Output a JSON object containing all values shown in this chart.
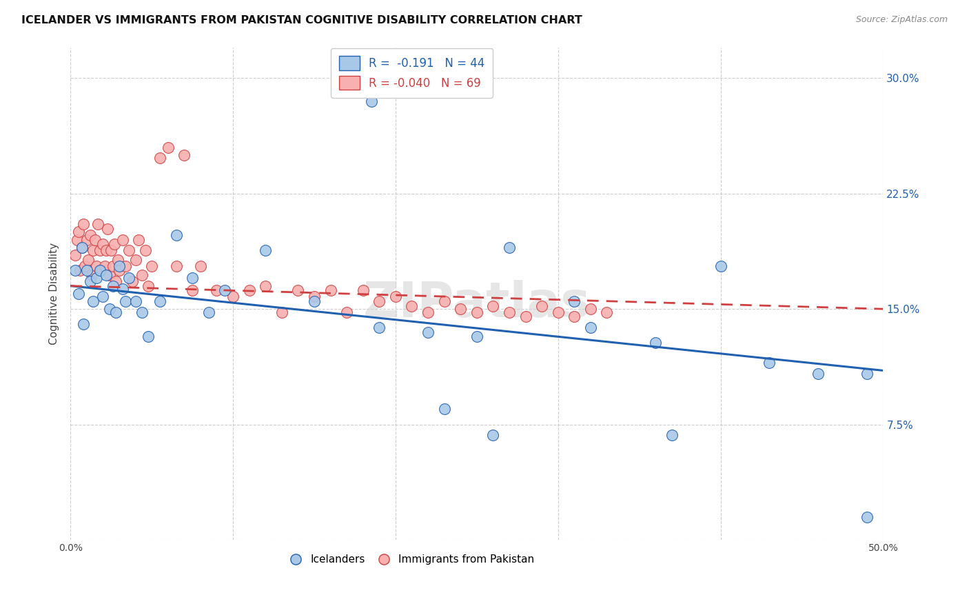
{
  "title": "ICELANDER VS IMMIGRANTS FROM PAKISTAN COGNITIVE DISABILITY CORRELATION CHART",
  "source": "Source: ZipAtlas.com",
  "ylabel": "Cognitive Disability",
  "xlim": [
    0.0,
    0.5
  ],
  "ylim": [
    0.0,
    0.32
  ],
  "yticks": [
    0.0,
    0.075,
    0.15,
    0.225,
    0.3
  ],
  "ytick_labels": [
    "",
    "7.5%",
    "15.0%",
    "22.5%",
    "30.0%"
  ],
  "xticks": [
    0.0,
    0.1,
    0.2,
    0.3,
    0.4,
    0.5
  ],
  "xtick_labels": [
    "0.0%",
    "",
    "",
    "",
    "",
    "50.0%"
  ],
  "background_color": "#ffffff",
  "grid_color": "#c8c8c8",
  "watermark": "ZIPatlas",
  "legend_R_blue": "-0.191",
  "legend_N_blue": "44",
  "legend_R_pink": "-0.040",
  "legend_N_pink": "69",
  "blue_color": "#a8c8e8",
  "pink_color": "#f8b0b0",
  "blue_line_color": "#2060b0",
  "pink_line_color": "#d04040",
  "icelanders_x": [
    0.003,
    0.005,
    0.007,
    0.008,
    0.01,
    0.012,
    0.014,
    0.016,
    0.018,
    0.02,
    0.022,
    0.024,
    0.026,
    0.028,
    0.03,
    0.032,
    0.034,
    0.036,
    0.04,
    0.044,
    0.048,
    0.055,
    0.065,
    0.075,
    0.085,
    0.095,
    0.12,
    0.15,
    0.185,
    0.22,
    0.25,
    0.27,
    0.32,
    0.36,
    0.4,
    0.43,
    0.46,
    0.49,
    0.19,
    0.23,
    0.26,
    0.31,
    0.37,
    0.49
  ],
  "icelanders_y": [
    0.175,
    0.16,
    0.19,
    0.14,
    0.175,
    0.168,
    0.155,
    0.17,
    0.175,
    0.158,
    0.172,
    0.15,
    0.165,
    0.148,
    0.178,
    0.163,
    0.155,
    0.17,
    0.155,
    0.148,
    0.132,
    0.155,
    0.198,
    0.17,
    0.148,
    0.162,
    0.188,
    0.155,
    0.285,
    0.135,
    0.132,
    0.19,
    0.138,
    0.128,
    0.178,
    0.115,
    0.108,
    0.108,
    0.138,
    0.085,
    0.068,
    0.155,
    0.068,
    0.015
  ],
  "pakistan_x": [
    0.003,
    0.004,
    0.005,
    0.006,
    0.007,
    0.008,
    0.009,
    0.01,
    0.011,
    0.012,
    0.013,
    0.014,
    0.015,
    0.016,
    0.017,
    0.018,
    0.019,
    0.02,
    0.021,
    0.022,
    0.023,
    0.024,
    0.025,
    0.026,
    0.027,
    0.028,
    0.029,
    0.03,
    0.032,
    0.034,
    0.036,
    0.038,
    0.04,
    0.042,
    0.044,
    0.046,
    0.048,
    0.05,
    0.055,
    0.06,
    0.065,
    0.07,
    0.075,
    0.08,
    0.09,
    0.1,
    0.11,
    0.12,
    0.13,
    0.14,
    0.15,
    0.16,
    0.17,
    0.18,
    0.19,
    0.2,
    0.21,
    0.22,
    0.23,
    0.24,
    0.25,
    0.26,
    0.27,
    0.28,
    0.29,
    0.3,
    0.31,
    0.32,
    0.33
  ],
  "pakistan_y": [
    0.185,
    0.195,
    0.2,
    0.175,
    0.19,
    0.205,
    0.178,
    0.195,
    0.182,
    0.198,
    0.172,
    0.188,
    0.195,
    0.178,
    0.205,
    0.188,
    0.175,
    0.192,
    0.178,
    0.188,
    0.202,
    0.172,
    0.188,
    0.178,
    0.192,
    0.168,
    0.182,
    0.175,
    0.195,
    0.178,
    0.188,
    0.168,
    0.182,
    0.195,
    0.172,
    0.188,
    0.165,
    0.178,
    0.248,
    0.255,
    0.178,
    0.25,
    0.162,
    0.178,
    0.162,
    0.158,
    0.162,
    0.165,
    0.148,
    0.162,
    0.158,
    0.162,
    0.148,
    0.162,
    0.155,
    0.158,
    0.152,
    0.148,
    0.155,
    0.15,
    0.148,
    0.152,
    0.148,
    0.145,
    0.152,
    0.148,
    0.145,
    0.15,
    0.148
  ]
}
